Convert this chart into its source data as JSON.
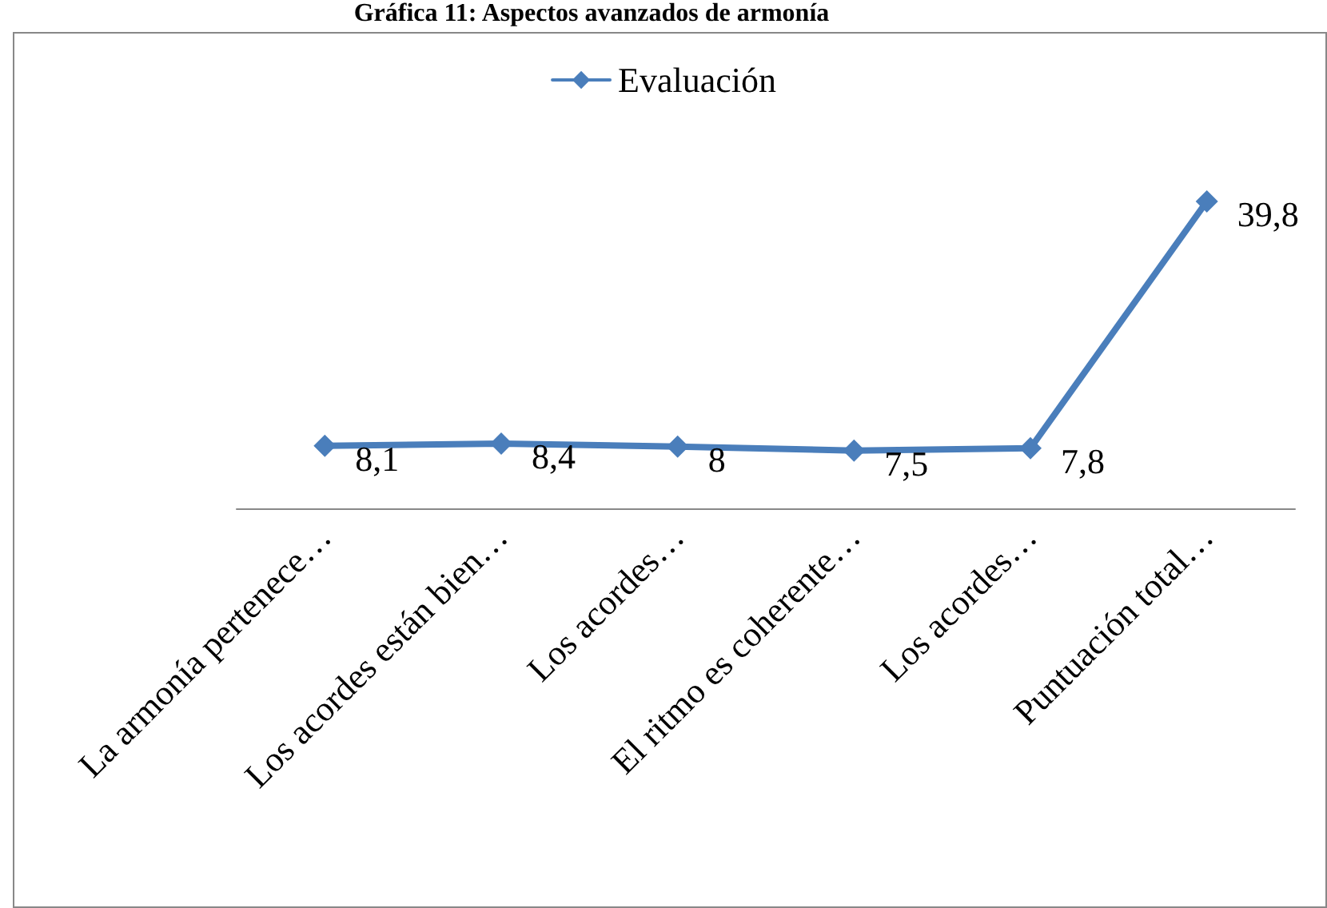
{
  "chart_data": {
    "type": "line",
    "title": "Gráfica 11: Aspectos avanzados de armonía",
    "categories": [
      "La armonía pertenece…",
      "Los acordes están bien…",
      "Los acordes…",
      "El ritmo es coherente…",
      "Los acordes…",
      "Puntuación total…"
    ],
    "series": [
      {
        "name": "Evaluación",
        "color": "#4a7ebb",
        "values": [
          8.1,
          8.4,
          8,
          7.5,
          7.8,
          39.8
        ],
        "value_labels": [
          "8,1",
          "8,4",
          "8",
          "7,5",
          "7,8",
          "39,8"
        ]
      }
    ],
    "legend": "top",
    "marker": "diamond",
    "line_style": "solid"
  }
}
